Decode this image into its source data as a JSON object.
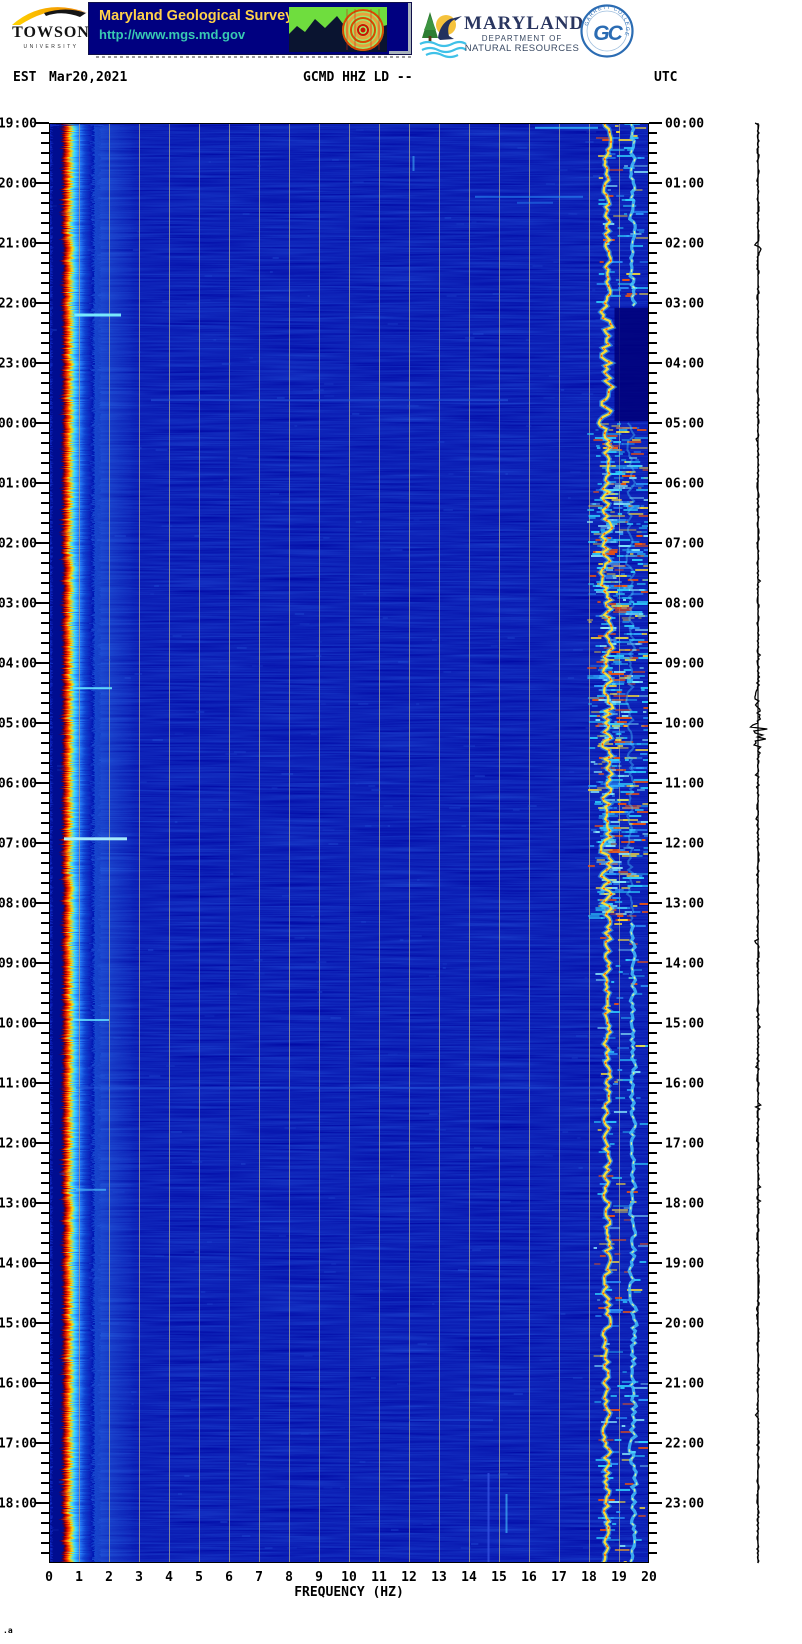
{
  "header": {
    "towson": {
      "name": "TOWSON",
      "sub": "UNIVERSITY"
    },
    "mgs": {
      "title": "Maryland Geological Survey",
      "url": "http://www.mgs.md.gov"
    },
    "dnr": {
      "state": "MARYLAND",
      "dept": "DEPARTMENT OF",
      "res": "NATURAL RESOURCES"
    },
    "gc": {
      "monogram": "GC",
      "ring_top": "GARRETT COLLEGE"
    }
  },
  "title_row": {
    "est": "EST",
    "date": "Mar20,2021",
    "station": "GCMD HHZ LD --",
    "utc": "UTC"
  },
  "footer_mark": ".a",
  "chart_data": {
    "type": "heatmap",
    "subtype": "24-hour seismic spectrogram (webicorder)",
    "title": "GCMD HHZ LD --",
    "xlabel": "FREQUENCY (HZ)",
    "xlim": [
      0,
      20
    ],
    "x_ticks": [
      "0",
      "1",
      "2",
      "3",
      "4",
      "5",
      "6",
      "7",
      "8",
      "9",
      "10",
      "11",
      "12",
      "13",
      "14",
      "15",
      "16",
      "17",
      "18",
      "19",
      "20"
    ],
    "grid": true,
    "time_axis": {
      "hours": 24,
      "minor_tick_minutes": 10,
      "left_timezone": "EST",
      "left_tick_labels": [
        "19:00",
        "20:00",
        "21:00",
        "22:00",
        "23:00",
        "00:00",
        "01:00",
        "02:00",
        "03:00",
        "04:00",
        "05:00",
        "06:00",
        "07:00",
        "08:00",
        "09:00",
        "10:00",
        "11:00",
        "12:00",
        "13:00",
        "14:00",
        "15:00",
        "16:00",
        "17:00",
        "18:00"
      ],
      "right_timezone": "UTC",
      "right_tick_labels": [
        "00:00",
        "01:00",
        "02:00",
        "03:00",
        "04:00",
        "05:00",
        "06:00",
        "07:00",
        "08:00",
        "09:00",
        "10:00",
        "11:00",
        "12:00",
        "13:00",
        "14:00",
        "15:00",
        "16:00",
        "17:00",
        "18:00",
        "19:00",
        "20:00",
        "21:00",
        "22:00",
        "23:00"
      ]
    },
    "colors": {
      "background": "#0107a4",
      "grid": "#969696",
      "band_core": "#d80000",
      "band_hot": "#ffd800",
      "band_edge": "#3ae0ff",
      "trace": "#000000"
    },
    "microseism_band_hz": [
      0.45,
      1.5
    ],
    "tones": [
      {
        "hz": 18.6,
        "utc_span": [
          0,
          24
        ],
        "intensity": "strong"
      },
      {
        "hz": 19.45,
        "utc_span": [
          0,
          3.05
        ],
        "intensity": "medium"
      },
      {
        "hz": 19.45,
        "utc_span": [
          13.3,
          24
        ],
        "intensity": "medium"
      }
    ],
    "broadband_noise": {
      "hz": [
        18.0,
        19.85
      ],
      "utc_span": [
        5.0,
        13.3
      ]
    },
    "quiet_patch": {
      "hz": [
        18.85,
        20.0
      ],
      "utc_span": [
        3.08,
        4.97
      ]
    },
    "events": [
      {
        "utc": 0.08,
        "f1": 16.2,
        "f2": 18.3,
        "color": "#38c8ff",
        "opacity": 0.75,
        "thick": 2
      },
      {
        "utc": 1.23,
        "f1": 14.2,
        "f2": 17.8,
        "color": "#2f9bff",
        "opacity": 0.55,
        "thick": 2
      },
      {
        "utc": 1.33,
        "f1": 15.6,
        "f2": 16.8,
        "color": "#2f9bff",
        "opacity": 0.4,
        "thick": 2
      },
      {
        "utc": 3.2,
        "f1": 0.85,
        "f2": 2.4,
        "color": "#7df2ff",
        "opacity": 0.95,
        "thick": 3
      },
      {
        "utc": 4.62,
        "f1": 3.4,
        "f2": 15.3,
        "color": "#2a5fe0",
        "opacity": 0.5,
        "thick": 2
      },
      {
        "utc": 9.42,
        "f1": 0.8,
        "f2": 2.1,
        "color": "#66e8ff",
        "opacity": 0.9,
        "thick": 2
      },
      {
        "utc": 11.93,
        "f1": 0.5,
        "f2": 2.6,
        "color": "#aef6ff",
        "opacity": 0.95,
        "thick": 3
      },
      {
        "utc": 14.95,
        "f1": 0.8,
        "f2": 2.0,
        "color": "#66e8ff",
        "opacity": 0.8,
        "thick": 2
      },
      {
        "utc": 16.08,
        "f1": 0.9,
        "f2": 18.6,
        "color": "#2a5fe0",
        "opacity": 0.45,
        "thick": 2
      },
      {
        "utc": 17.78,
        "f1": 0.9,
        "f2": 1.9,
        "color": "#55d0ff",
        "opacity": 0.6,
        "thick": 2
      },
      {
        "utc": 21.62,
        "f1": 12.0,
        "f2": 14.8,
        "color": "#2a5fe0",
        "opacity": 0.4,
        "thick": 2
      },
      {
        "vertical": true,
        "f": 14.65,
        "utc1": 22.5,
        "utc2": 24.0,
        "color": "#3350e0",
        "opacity": 0.8,
        "thick": 2
      },
      {
        "vertical": true,
        "f": 15.25,
        "utc1": 22.85,
        "utc2": 23.5,
        "color": "#49c8ff",
        "opacity": 0.6,
        "thick": 2
      },
      {
        "vertical": true,
        "f": 12.15,
        "utc1": 0.55,
        "utc2": 0.8,
        "color": "#49c8ff",
        "opacity": 0.5,
        "thick": 2
      }
    ],
    "trace_bursts_utc": [
      {
        "u": 2.08,
        "a": 3.5,
        "w": 0.06
      },
      {
        "u": 9.6,
        "a": 2.2,
        "w": 0.3
      },
      {
        "u": 10.08,
        "a": 8.0,
        "w": 0.1
      },
      {
        "u": 10.32,
        "a": 3.0,
        "w": 0.18
      },
      {
        "u": 13.62,
        "a": 2.5,
        "w": 0.05
      },
      {
        "u": 16.4,
        "a": 1.5,
        "w": 0.05
      },
      {
        "u": 19.82,
        "a": 2.0,
        "w": 0.04
      },
      {
        "u": 23.3,
        "a": 1.5,
        "w": 0.06
      }
    ]
  }
}
